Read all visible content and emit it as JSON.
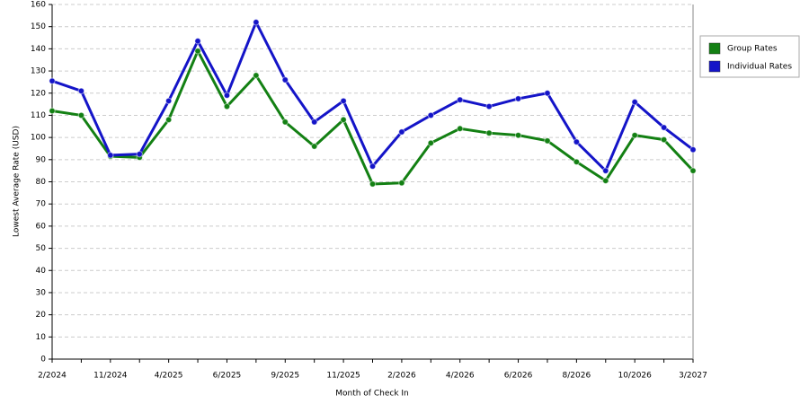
{
  "chart_data": {
    "type": "line",
    "x_label": "Month of Check In",
    "y_label": "Lowest Average Rate (USD)",
    "categories": [
      "2/2024",
      null,
      "11/2024",
      null,
      "4/2025",
      null,
      "6/2025",
      null,
      "9/2025",
      null,
      "11/2025",
      null,
      "2/2026",
      null,
      "4/2026",
      null,
      "6/2026",
      null,
      "8/2026",
      null,
      "10/2026",
      null,
      "3/2027"
    ],
    "series": [
      {
        "name": "Group Rates",
        "color": "#138013",
        "values": [
          112,
          110,
          91.5,
          91,
          108,
          139,
          114,
          128,
          107,
          96,
          108,
          79,
          79.5,
          97.5,
          104,
          102,
          101,
          98.5,
          89,
          80.5,
          101,
          99,
          85
        ]
      },
      {
        "name": "Individual Rates",
        "color": "#1414c8",
        "values": [
          125.5,
          121,
          92,
          92.5,
          116.5,
          143.5,
          119,
          152,
          126,
          107,
          116.5,
          87,
          102.5,
          110,
          117,
          114,
          117.5,
          120,
          98,
          85,
          116,
          104.5,
          94.5
        ]
      }
    ],
    "ylim": [
      0,
      160
    ],
    "yticks": [
      0,
      10,
      20,
      30,
      40,
      50,
      60,
      70,
      80,
      90,
      100,
      110,
      120,
      130,
      140,
      150,
      160
    ],
    "grid": true,
    "legend": "right"
  }
}
